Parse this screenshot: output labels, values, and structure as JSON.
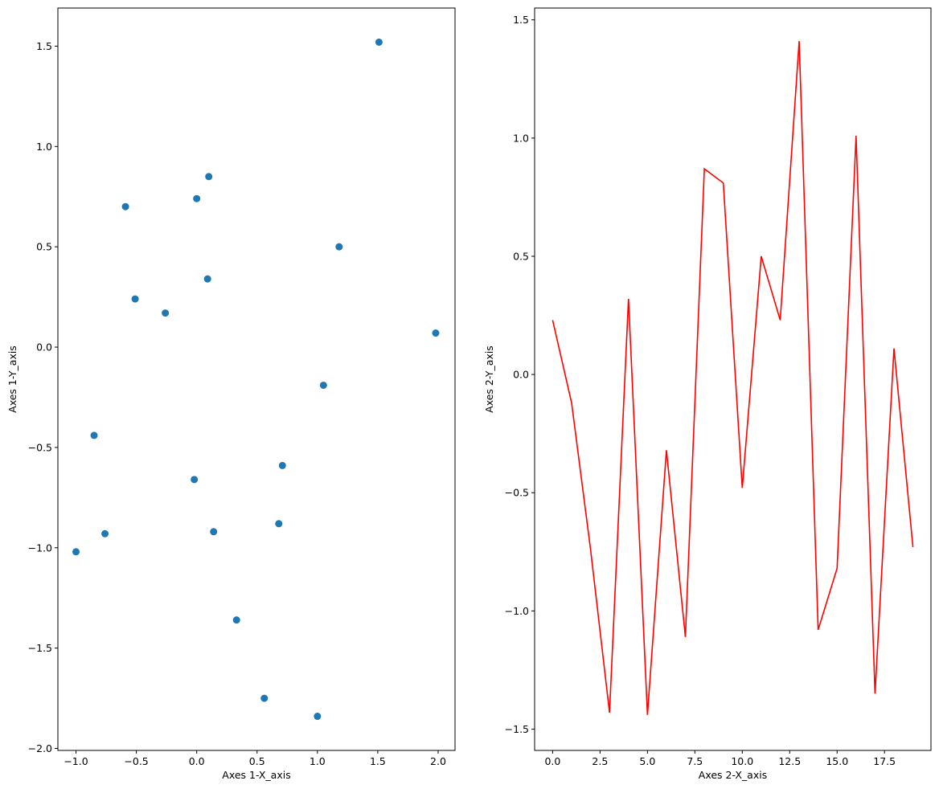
{
  "chart_data": [
    {
      "type": "scatter",
      "xlabel": "Axes 1-X_axis",
      "ylabel": "Axes 1-Y_axis",
      "xlim": [
        -1.15,
        2.14
      ],
      "ylim": [
        -2.01,
        1.69
      ],
      "xticks": [
        -1.0,
        -0.5,
        0.0,
        0.5,
        1.0,
        1.5,
        2.0
      ],
      "xtick_labels": [
        "−1.0",
        "−0.5",
        "0.0",
        "0.5",
        "1.0",
        "1.5",
        "2.0"
      ],
      "yticks": [
        -2.0,
        -1.5,
        -1.0,
        -0.5,
        0.0,
        0.5,
        1.0,
        1.5
      ],
      "ytick_labels": [
        "−2.0",
        "−1.5",
        "−1.0",
        "−0.5",
        "0.0",
        "0.5",
        "1.0",
        "1.5"
      ],
      "color": "#1f77b4",
      "grid": false,
      "points": [
        [
          1.51,
          1.52
        ],
        [
          0.1,
          0.85
        ],
        [
          0.0,
          0.74
        ],
        [
          -0.59,
          0.7
        ],
        [
          1.18,
          0.5
        ],
        [
          0.09,
          0.34
        ],
        [
          -0.51,
          0.24
        ],
        [
          -0.26,
          0.17
        ],
        [
          1.98,
          0.07
        ],
        [
          1.05,
          -0.19
        ],
        [
          -0.85,
          -0.44
        ],
        [
          0.71,
          -0.59
        ],
        [
          -0.02,
          -0.66
        ],
        [
          0.68,
          -0.88
        ],
        [
          0.14,
          -0.92
        ],
        [
          -0.76,
          -0.93
        ],
        [
          -1.0,
          -1.02
        ],
        [
          0.33,
          -1.36
        ],
        [
          0.56,
          -1.75
        ],
        [
          1.0,
          -1.84
        ]
      ]
    },
    {
      "type": "line",
      "xlabel": "Axes 2-X_axis",
      "ylabel": "Axes 2-Y_axis",
      "xlim": [
        -0.95,
        19.95
      ],
      "ylim": [
        -1.59,
        1.55
      ],
      "xticks": [
        0.0,
        2.5,
        5.0,
        7.5,
        10.0,
        12.5,
        15.0,
        17.5
      ],
      "xtick_labels": [
        "0.0",
        "2.5",
        "5.0",
        "7.5",
        "10.0",
        "12.5",
        "15.0",
        "17.5"
      ],
      "yticks": [
        -1.5,
        -1.0,
        -0.5,
        0.0,
        0.5,
        1.0,
        1.5
      ],
      "ytick_labels": [
        "−1.5",
        "−1.0",
        "−0.5",
        "0.0",
        "0.5",
        "1.0",
        "1.5"
      ],
      "color": "#ff0000",
      "grid": false,
      "x": [
        0,
        1,
        2,
        3,
        4,
        5,
        6,
        7,
        8,
        9,
        10,
        11,
        12,
        13,
        14,
        15,
        16,
        17,
        18,
        19
      ],
      "y": [
        0.23,
        -0.12,
        -0.74,
        -1.43,
        0.32,
        -1.44,
        -0.32,
        -1.11,
        0.87,
        0.81,
        -0.48,
        0.5,
        0.23,
        1.41,
        -1.08,
        -0.82,
        1.01,
        -1.35,
        0.11,
        -0.73
      ]
    }
  ]
}
